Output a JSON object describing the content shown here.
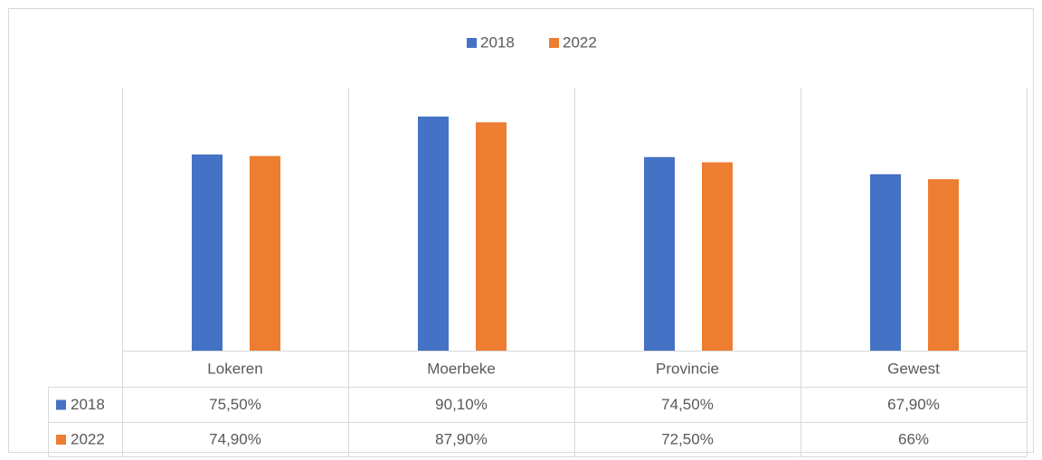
{
  "chart_data": {
    "type": "bar",
    "categories": [
      "Lokeren",
      "Moerbeke",
      "Provincie",
      "Gewest"
    ],
    "series": [
      {
        "name": "2018",
        "color": "#4472c4",
        "values": [
          75.5,
          90.1,
          74.5,
          67.9
        ],
        "value_labels": [
          "75,50%",
          "90,10%",
          "74,50%",
          "67,90%"
        ]
      },
      {
        "name": "2022",
        "color": "#ed7d31",
        "values": [
          74.9,
          87.9,
          72.5,
          66
        ],
        "value_labels": [
          "74,90%",
          "87,90%",
          "72,50%",
          "66%"
        ]
      }
    ],
    "ylim": [
      0,
      100
    ]
  }
}
